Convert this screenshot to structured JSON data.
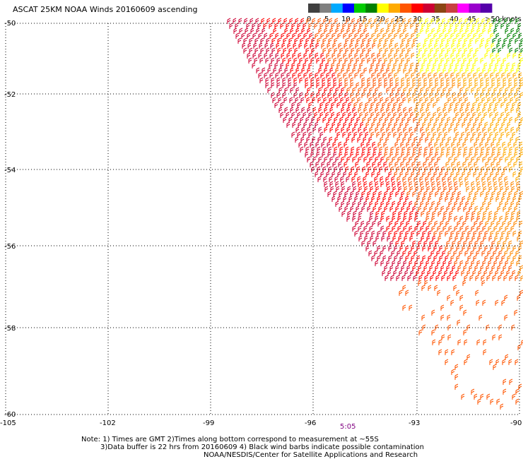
{
  "title": "ASCAT 25KM NOAA Winds 20160609 ascending",
  "colors": {
    "scale": [
      "#404040",
      "#808080",
      "#00aaff",
      "#0000ff",
      "#00cc00",
      "#008000",
      "#ffff00",
      "#ffaa00",
      "#ff5500",
      "#ff0000",
      "#cc0033",
      "#8b4513",
      "#c84040",
      "#ff00ff",
      "#9900cc",
      "#5500aa"
    ],
    "grid": "#000000",
    "pass_time": "#800080"
  },
  "colorbar": {
    "labels": [
      "0",
      "5",
      "10",
      "15",
      "20",
      "25",
      "30",
      "35",
      "40",
      "45",
      ">50 knots"
    ]
  },
  "axes": {
    "lon_ticks": [
      "-105",
      "-102",
      "-99",
      "-96",
      "-93",
      "-90"
    ],
    "lat_ticks": [
      "-50",
      "-52",
      "-54",
      "-56",
      "-58",
      "-60"
    ],
    "lon_range": [
      -105,
      -90
    ],
    "lat_range": [
      -60,
      -50
    ]
  },
  "pass_time": "5:05",
  "notes": [
    "Note: 1) Times are GMT 2)Times along bottom correspond to measurement at ~55S",
    "3)Data buffer is 22 hrs from 20160609 4) Black wind barbs indicate possible contamination",
    "NOAA/NESDIS/Center for Satellite Applications and Research"
  ]
}
